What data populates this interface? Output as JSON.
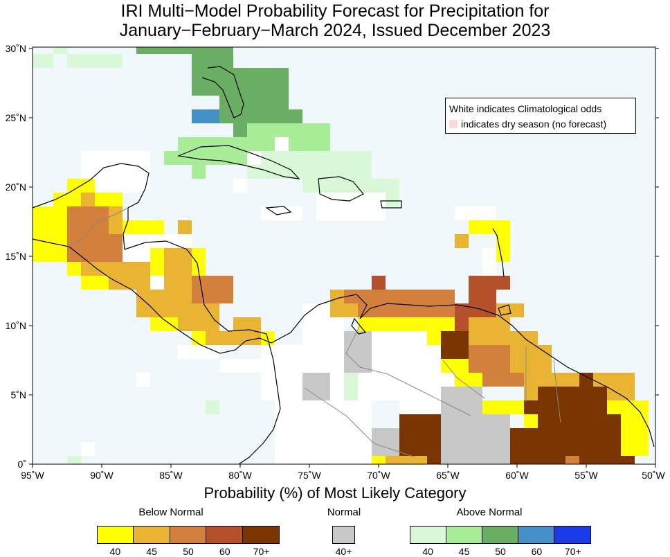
{
  "title_line1": "IRI Multi−Model Probability Forecast for Precipitation for",
  "title_line2": "January−February−March 2024, Issued December 2023",
  "legend_note": {
    "white": "White indicates Climatological odds",
    "dry": "indicates dry season (no forecast)"
  },
  "colorbar_title": "Probability (%) of Most Likely Category",
  "categories": {
    "below": "Below Normal",
    "normal": "Normal",
    "above": "Above Normal"
  },
  "colorbars": {
    "below": {
      "colors": [
        "#ffff00",
        "#e8b432",
        "#d2803c",
        "#b4502a",
        "#7a3500"
      ],
      "ticks": [
        "40",
        "45",
        "50",
        "60",
        "70+"
      ]
    },
    "normal": {
      "colors": [
        "#c8c8c8"
      ],
      "ticks": [
        "40+"
      ]
    },
    "above": {
      "colors": [
        "#d8f8d8",
        "#a8ee98",
        "#6aae64",
        "#4490c8",
        "#1a3ce8"
      ],
      "ticks": [
        "40",
        "45",
        "50",
        "60",
        "70+"
      ]
    }
  },
  "axes": {
    "lon_labels": [
      "95˚W",
      "90˚W",
      "85˚W",
      "80˚W",
      "75˚W",
      "70˚W",
      "65˚W",
      "60˚W",
      "55˚W",
      "50˚W"
    ],
    "lat_labels": [
      "30˚N",
      "25˚N",
      "20˚N",
      "15˚N",
      "10˚N",
      "5˚N",
      "0˚"
    ]
  },
  "ocean_color": "#f0f8fc",
  "dry_season_color": "#ffd8d8"
}
